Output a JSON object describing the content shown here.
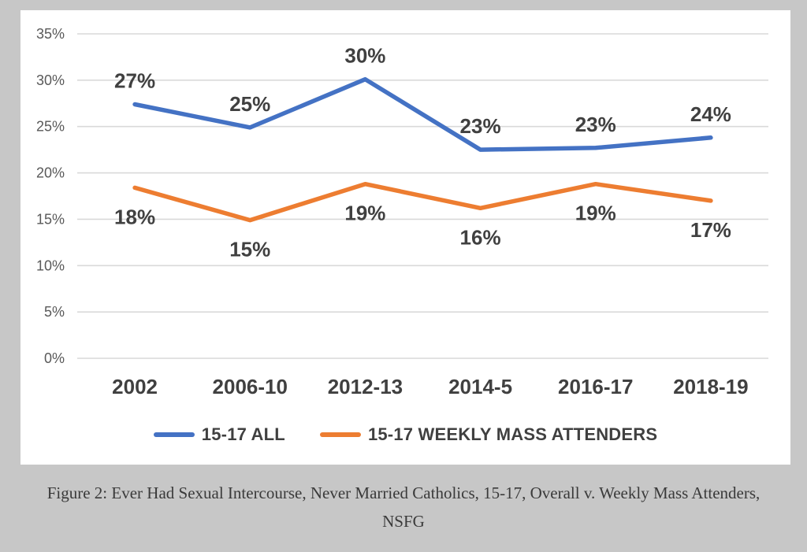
{
  "page": {
    "background_color": "#c7c7c7",
    "card_background": "#ffffff"
  },
  "caption": {
    "line1": "Figure 2: Ever Had Sexual Intercourse, Never Married Catholics, 15-17, Overall v. Weekly Mass Attenders,",
    "line2": "NSFG"
  },
  "chart_data": {
    "type": "line",
    "title": "",
    "xlabel": "",
    "ylabel": "",
    "categories": [
      "2002",
      "2006-10",
      "2012-13",
      "2014-5",
      "2016-17",
      "2018-19"
    ],
    "series": [
      {
        "name": "15-17 ALL",
        "color": "#4472C4",
        "values": [
          27,
          25,
          30,
          23,
          23,
          24
        ],
        "labels": [
          "27%",
          "25%",
          "30%",
          "23%",
          "23%",
          "24%"
        ],
        "plotted_values": [
          27.4,
          24.9,
          30.1,
          22.5,
          22.7,
          23.8
        ],
        "label_position": "above"
      },
      {
        "name": "15-17 WEEKLY MASS ATTENDERS",
        "color": "#ED7D31",
        "values": [
          18,
          15,
          19,
          16,
          19,
          17
        ],
        "labels": [
          "18%",
          "15%",
          "19%",
          "16%",
          "19%",
          "17%"
        ],
        "plotted_values": [
          18.4,
          14.9,
          18.8,
          16.2,
          18.8,
          17.0
        ],
        "label_position": "below"
      }
    ],
    "y_axis": {
      "min": 0,
      "max": 35,
      "step": 5,
      "tick_labels": [
        "0%",
        "5%",
        "10%",
        "15%",
        "20%",
        "25%",
        "30%",
        "35%"
      ]
    },
    "grid": true,
    "legend_position": "bottom",
    "style": {
      "gridline_color": "#d9d9d9",
      "axis_text_color": "#595959",
      "label_text_color": "#404040",
      "line_width": 5.5
    }
  }
}
